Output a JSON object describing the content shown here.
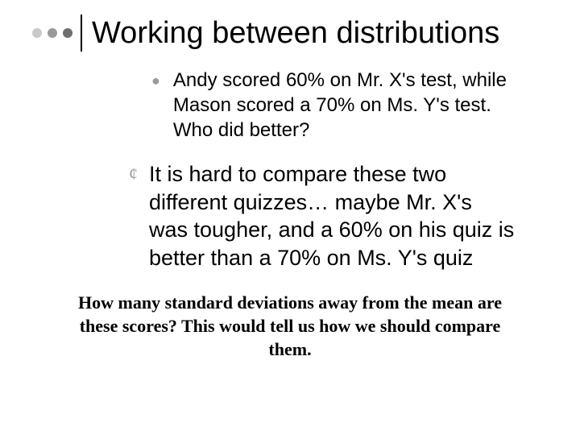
{
  "title": "Working between distributions",
  "dots": {
    "colors": [
      "#c9c9c9",
      "#9a9a9a",
      "#6f6f6f"
    ]
  },
  "bullets": {
    "level1_marker": "●",
    "level1_marker_color": "#9a9a9a",
    "level1_text": "Andy scored 60% on Mr. X's test, while Mason scored a 70% on Ms. Y's test. Who did better?",
    "level2_marker": "¢",
    "level2_marker_color": "#9a9a9a",
    "level2_text": "It is hard to compare these two different quizzes… maybe Mr. X's was tougher, and a 60% on his quiz is better than a 70% on Ms. Y's quiz"
  },
  "footer": "How many standard deviations away from the mean are these scores? This would tell us how we should compare them.",
  "styling": {
    "background_color": "#ffffff",
    "text_color": "#000000",
    "title_fontsize": 38,
    "bullet1_fontsize": 24,
    "bullet2_fontsize": 27,
    "footer_fontsize": 22,
    "footer_fontweight": "bold",
    "footer_font": "Times New Roman",
    "body_font": "Arial",
    "vline_color": "#000000"
  }
}
